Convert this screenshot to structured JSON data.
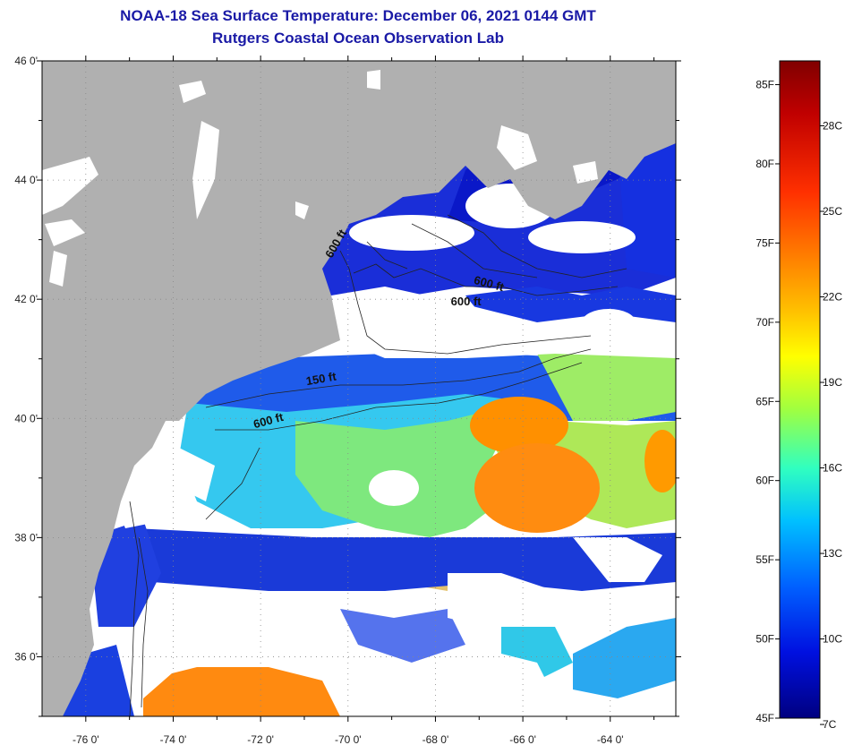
{
  "header": {
    "title": "NOAA-18 Sea Surface Temperature:  December 06, 2021 0144 GMT",
    "subtitle": "Rutgers Coastal Ocean Observation Lab"
  },
  "map": {
    "lon_range": [
      -77,
      -62.5
    ],
    "lat_range": [
      35,
      46
    ],
    "lat_ticks": [
      {
        "value": 46,
        "label": "46 0'"
      },
      {
        "value": 44,
        "label": "44 0'"
      },
      {
        "value": 42,
        "label": "42 0'"
      },
      {
        "value": 40,
        "label": "40 0'"
      },
      {
        "value": 38,
        "label": "38 0'"
      },
      {
        "value": 36,
        "label": "36 0'"
      }
    ],
    "lon_ticks": [
      {
        "value": -76,
        "label": "-76 0'"
      },
      {
        "value": -74,
        "label": "-74 0'"
      },
      {
        "value": -72,
        "label": "-72 0'"
      },
      {
        "value": -70,
        "label": "-70 0'"
      },
      {
        "value": -68,
        "label": "-68 0'"
      },
      {
        "value": -66,
        "label": "-66 0'"
      },
      {
        "value": -64,
        "label": "-64 0'"
      }
    ],
    "contour_labels": [
      {
        "text": "600 ft",
        "lon": -70.2,
        "lat": 42.9,
        "angle": -60
      },
      {
        "text": "600 ft",
        "lon": -66.8,
        "lat": 42.2,
        "angle": 15
      },
      {
        "text": "600 ft",
        "lon": -67.3,
        "lat": 41.9,
        "angle": 0
      },
      {
        "text": "150 ft",
        "lon": -70.6,
        "lat": 40.6,
        "angle": -10
      },
      {
        "text": "600 ft",
        "lon": -71.8,
        "lat": 39.9,
        "angle": -15
      }
    ],
    "colors": {
      "land": "#b0b0b0",
      "cloud": "#ffffff",
      "grid": "#888888"
    }
  },
  "colorbar": {
    "fahrenheit": [
      {
        "value": 85,
        "label": "85F"
      },
      {
        "value": 80,
        "label": "80F"
      },
      {
        "value": 75,
        "label": "75F"
      },
      {
        "value": 70,
        "label": "70F"
      },
      {
        "value": 65,
        "label": "65F"
      },
      {
        "value": 60,
        "label": "60F"
      },
      {
        "value": 55,
        "label": "55F"
      },
      {
        "value": 50,
        "label": "50F"
      },
      {
        "value": 45,
        "label": "45F"
      }
    ],
    "celsius": [
      {
        "value": 28,
        "label": "28C"
      },
      {
        "value": 25,
        "label": "25C"
      },
      {
        "value": 22,
        "label": "22C"
      },
      {
        "value": 19,
        "label": "19C"
      },
      {
        "value": 16,
        "label": "16C"
      },
      {
        "value": 13,
        "label": "13C"
      },
      {
        "value": 10,
        "label": "10C"
      },
      {
        "value": 7,
        "label": "7C"
      }
    ],
    "range_f": [
      45,
      86.5
    ],
    "colors": [
      "#800000",
      "#d00000",
      "#ff3000",
      "#ff8000",
      "#ffc000",
      "#ffff00",
      "#a0ff40",
      "#30ffc0",
      "#00c0ff",
      "#0060ff",
      "#0010e0",
      "#000080"
    ]
  }
}
